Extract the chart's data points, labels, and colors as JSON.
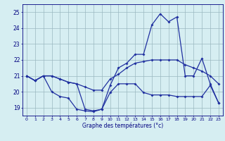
{
  "hours": [
    0,
    1,
    2,
    3,
    4,
    5,
    6,
    7,
    8,
    9,
    10,
    11,
    12,
    13,
    14,
    15,
    16,
    17,
    18,
    19,
    20,
    21,
    22,
    23
  ],
  "temp_max": [
    21.0,
    20.7,
    21.0,
    21.0,
    20.8,
    20.6,
    20.5,
    18.9,
    18.8,
    18.9,
    20.4,
    21.5,
    21.8,
    22.35,
    22.35,
    24.2,
    24.9,
    24.4,
    24.7,
    21.0,
    21.0,
    22.1,
    20.5,
    19.3
  ],
  "temp_mean": [
    21.0,
    20.7,
    21.0,
    21.0,
    20.8,
    20.6,
    20.5,
    20.3,
    20.1,
    20.1,
    20.8,
    21.1,
    21.5,
    21.8,
    21.9,
    22.0,
    22.0,
    22.0,
    22.0,
    21.7,
    21.5,
    21.3,
    21.0,
    20.5
  ],
  "temp_min": [
    21.0,
    20.7,
    21.0,
    20.0,
    19.7,
    19.6,
    18.9,
    18.8,
    18.75,
    18.9,
    19.95,
    20.5,
    20.5,
    20.5,
    19.95,
    19.8,
    19.8,
    19.8,
    19.7,
    19.7,
    19.7,
    19.7,
    20.4,
    19.3
  ],
  "line_color": "#2030a0",
  "bg_color": "#d6eef2",
  "grid_color": "#9ab8c0",
  "xlabel": "Graphe des températures (°c)",
  "ylabel_ticks": [
    19,
    20,
    21,
    22,
    23,
    24,
    25
  ],
  "ylim": [
    18.5,
    25.5
  ],
  "xlim": [
    -0.5,
    23.5
  ],
  "figw": 3.2,
  "figh": 2.0,
  "dpi": 100
}
